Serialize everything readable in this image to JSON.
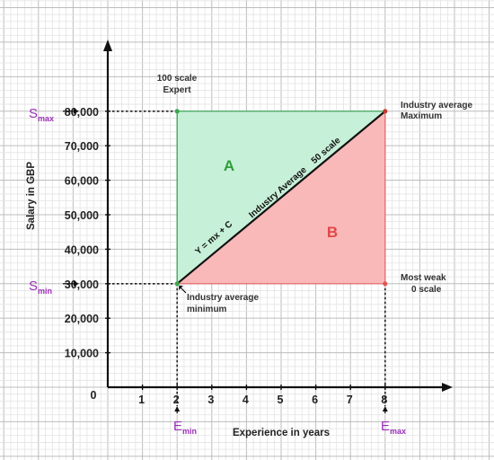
{
  "diagram": {
    "x_axis": {
      "title": "Experience in years",
      "origin_label": "0",
      "ticks": [
        1,
        2,
        3,
        4,
        5,
        6,
        7,
        8
      ],
      "range": [
        0,
        10
      ]
    },
    "y_axis": {
      "title": "Salary in GBP",
      "ticks": [
        "10,000",
        "20,000",
        "30,000",
        "40,000",
        "50,000",
        "60,000",
        "70,000",
        "80,000"
      ],
      "tick_values": [
        10000,
        20000,
        30000,
        40000,
        50000,
        60000,
        70000,
        80000
      ],
      "range": [
        0,
        105000
      ]
    },
    "markers": {
      "s_max": {
        "main": "S",
        "sub": "max",
        "value": 80000
      },
      "s_min": {
        "main": "S",
        "sub": "min",
        "value": 30000
      },
      "e_min": {
        "main": "E",
        "sub": "min",
        "value": 2
      },
      "e_max": {
        "main": "E",
        "sub": "max",
        "value": 8
      }
    },
    "points": {
      "expert": {
        "x": 2,
        "y": 80000,
        "label_line1": "100 scale",
        "label_line2": "Expert",
        "color": "#3aa64a"
      },
      "max": {
        "x": 8,
        "y": 80000,
        "label_line1": "Industry average",
        "label_line2": "Maximum",
        "color": "#c0392b"
      },
      "min": {
        "x": 2,
        "y": 30000,
        "label_line1": "Industry average",
        "label_line2": "minimum",
        "color": "#3aa64a"
      },
      "weak": {
        "x": 8,
        "y": 30000,
        "label_line1": "Most weak",
        "label_line2": "0 scale",
        "color": "#e05555"
      }
    },
    "regions": {
      "a": {
        "letter": "A",
        "fill": "#c7f0d8",
        "stroke": "#2e9e4f",
        "letter_color": "#2e9e3a"
      },
      "b": {
        "letter": "B",
        "fill": "#f9b9b9",
        "stroke": "#e06666",
        "letter_color": "#e04848"
      }
    },
    "diagonal": {
      "equation": "Y = mx + C",
      "label": "Industry Average    50 scale"
    },
    "colors": {
      "purple": "#9b2fb8",
      "axis": "#111111"
    }
  }
}
